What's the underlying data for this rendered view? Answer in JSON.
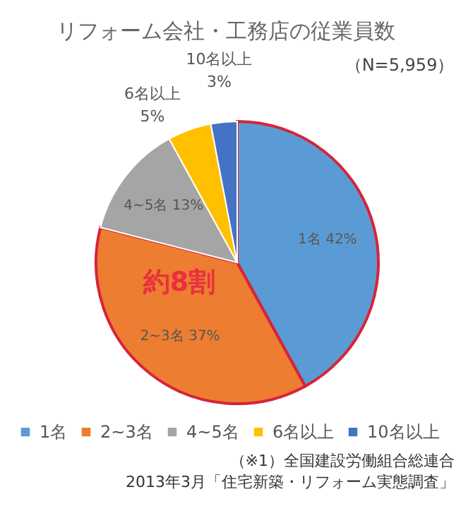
{
  "chart_data": {
    "type": "pie",
    "title": "リフォーム会社・工務店の従業員数",
    "subtitle": "（N=5,959）",
    "categories": [
      "1名",
      "2~3名",
      "4~5名",
      "6名以上",
      "10名以上"
    ],
    "values": [
      42,
      37,
      13,
      5,
      3
    ],
    "colors": [
      "#5b9bd5",
      "#ed7d31",
      "#a5a5a5",
      "#ffc000",
      "#4472c4"
    ],
    "value_labels": [
      "1名 42%",
      "2~3名 37%",
      "4~5名 13%",
      "6名以上 5%",
      "10名以上 3%"
    ],
    "legend": "bottom",
    "annotations": [
      "約8割",
      "（※1）全国建設労働組合総連合",
      "2013年3月「住宅新築・リフォーム実態調査」"
    ]
  }
}
